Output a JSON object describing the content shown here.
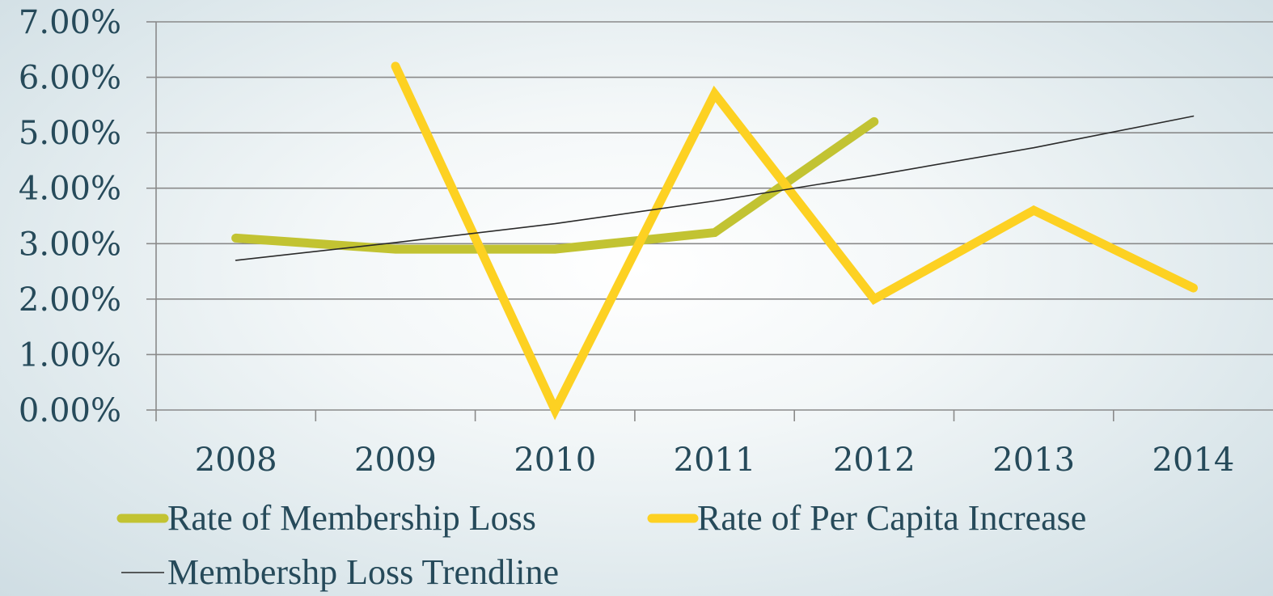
{
  "chart_data": {
    "type": "line",
    "categories": [
      "2008",
      "2009",
      "2010",
      "2011",
      "2012",
      "2013",
      "2014"
    ],
    "y_tick_labels": [
      "0.00%",
      "1.00%",
      "2.00%",
      "3.00%",
      "4.00%",
      "5.00%",
      "6.00%",
      "7.00%"
    ],
    "ylim": [
      0,
      0.07
    ],
    "grid": true,
    "legend_position": "bottom",
    "series": [
      {
        "name": "Rate of Membership Loss",
        "color": "#c2c332",
        "values": [
          0.031,
          0.029,
          0.029,
          0.032,
          0.052,
          null,
          null
        ]
      },
      {
        "name": "Rate of Per Capita Increase",
        "color": "#fdd122",
        "values": [
          null,
          0.062,
          0.0,
          0.057,
          0.02,
          0.036,
          0.022
        ]
      },
      {
        "name": "Membershp Loss Trendline",
        "color": "#2a2a2a",
        "values": [
          0.027,
          0.0302,
          0.0336,
          0.0377,
          0.0423,
          0.0473,
          0.053
        ]
      }
    ]
  }
}
